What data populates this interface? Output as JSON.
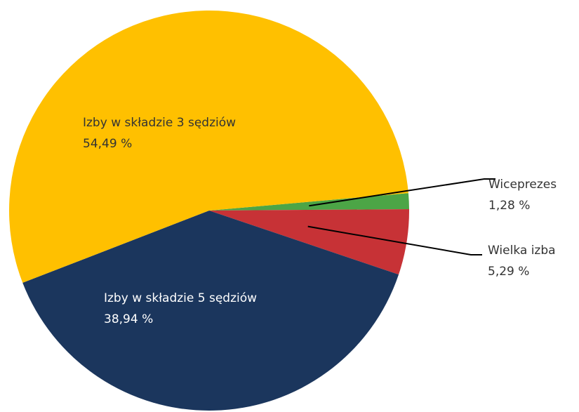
{
  "chart_data": {
    "type": "pie",
    "title": "",
    "unit": "%",
    "slices": [
      {
        "name": "Wiceprezes",
        "value": 1.28,
        "value_label": "1,28 %",
        "color": "#4CA546"
      },
      {
        "name": "Wielka izba",
        "value": 5.29,
        "value_label": "5,29 %",
        "color": "#C73236"
      },
      {
        "name": "Izby w składzie 5 sędziów",
        "value": 38.94,
        "value_label": "38,94 %",
        "color": "#1B365D"
      },
      {
        "name": "Izby w składzie 3 sędziów",
        "value": 54.49,
        "value_label": "54,49 %",
        "color": "#FFC000"
      }
    ],
    "legend": "none",
    "labels": "inside for large slices, outside with leader lines for small slices"
  }
}
